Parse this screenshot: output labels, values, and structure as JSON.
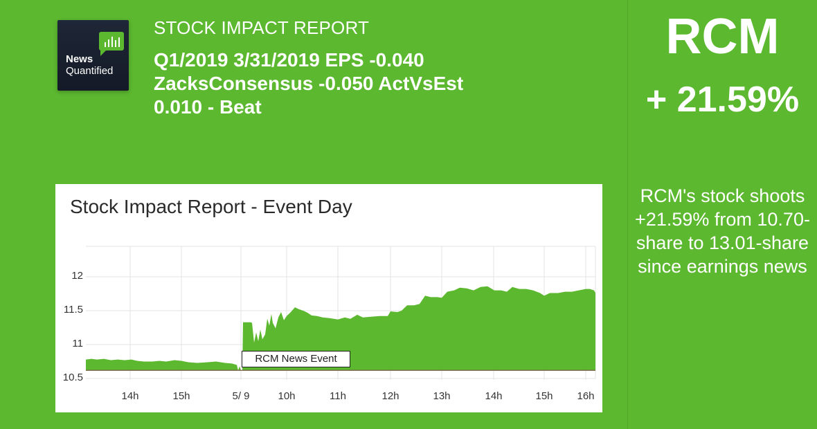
{
  "header": {
    "logo": {
      "line1": "News",
      "line2": "Quantified",
      "icon": "bar-chart-bubble-icon"
    },
    "report_label": "STOCK IMPACT REPORT",
    "headline": "Q1/2019 3/31/2019 EPS -0.040 ZacksConsensus -0.050 ActVsEst 0.010 - Beat"
  },
  "sidebar": {
    "ticker": "RCM",
    "change": "+ 21.59%",
    "summary": "RCM's stock shoots +21.59% from 10.70-share to 13.01-share since earnings news"
  },
  "colors": {
    "background": "#5cb82f",
    "area_fill": "#5cb82f",
    "panel": "#ffffff",
    "gridline": "#e3e3e3",
    "baseline": "#7a5a4a"
  },
  "chart_data": {
    "type": "area",
    "title": "Stock Impact Report - Event Day",
    "xlabel": "",
    "ylabel": "",
    "ylim": [
      10.5,
      12.45
    ],
    "grid": true,
    "legend": null,
    "yticks": [
      "12",
      "11.5",
      "11",
      "10.5"
    ],
    "ytick_values": [
      12,
      11.5,
      11,
      10.5
    ],
    "xticks": [
      "14h",
      "15h",
      "5/ 9",
      "10h",
      "11h",
      "12h",
      "13h",
      "14h",
      "15h",
      "16h"
    ],
    "baseline": 10.62,
    "annotations": [
      {
        "label": "RCM News Event",
        "x": "5/ 9"
      }
    ],
    "series": [
      {
        "name": "RCM",
        "x": [
          "13:20",
          "14h",
          "15h",
          "15:50",
          "5/9 09:30",
          "09:40",
          "09:50",
          "10h",
          "10:30",
          "11h",
          "11:30",
          "12h",
          "12:30",
          "13h",
          "13:30",
          "14h",
          "14:30",
          "15h",
          "15:30",
          "16h"
        ],
        "values": [
          10.78,
          10.77,
          10.74,
          10.7,
          11.33,
          11.42,
          11.58,
          11.5,
          11.46,
          11.38,
          11.42,
          11.52,
          11.73,
          11.77,
          11.95,
          11.88,
          11.91,
          11.82,
          11.87,
          11.84
        ]
      }
    ]
  }
}
